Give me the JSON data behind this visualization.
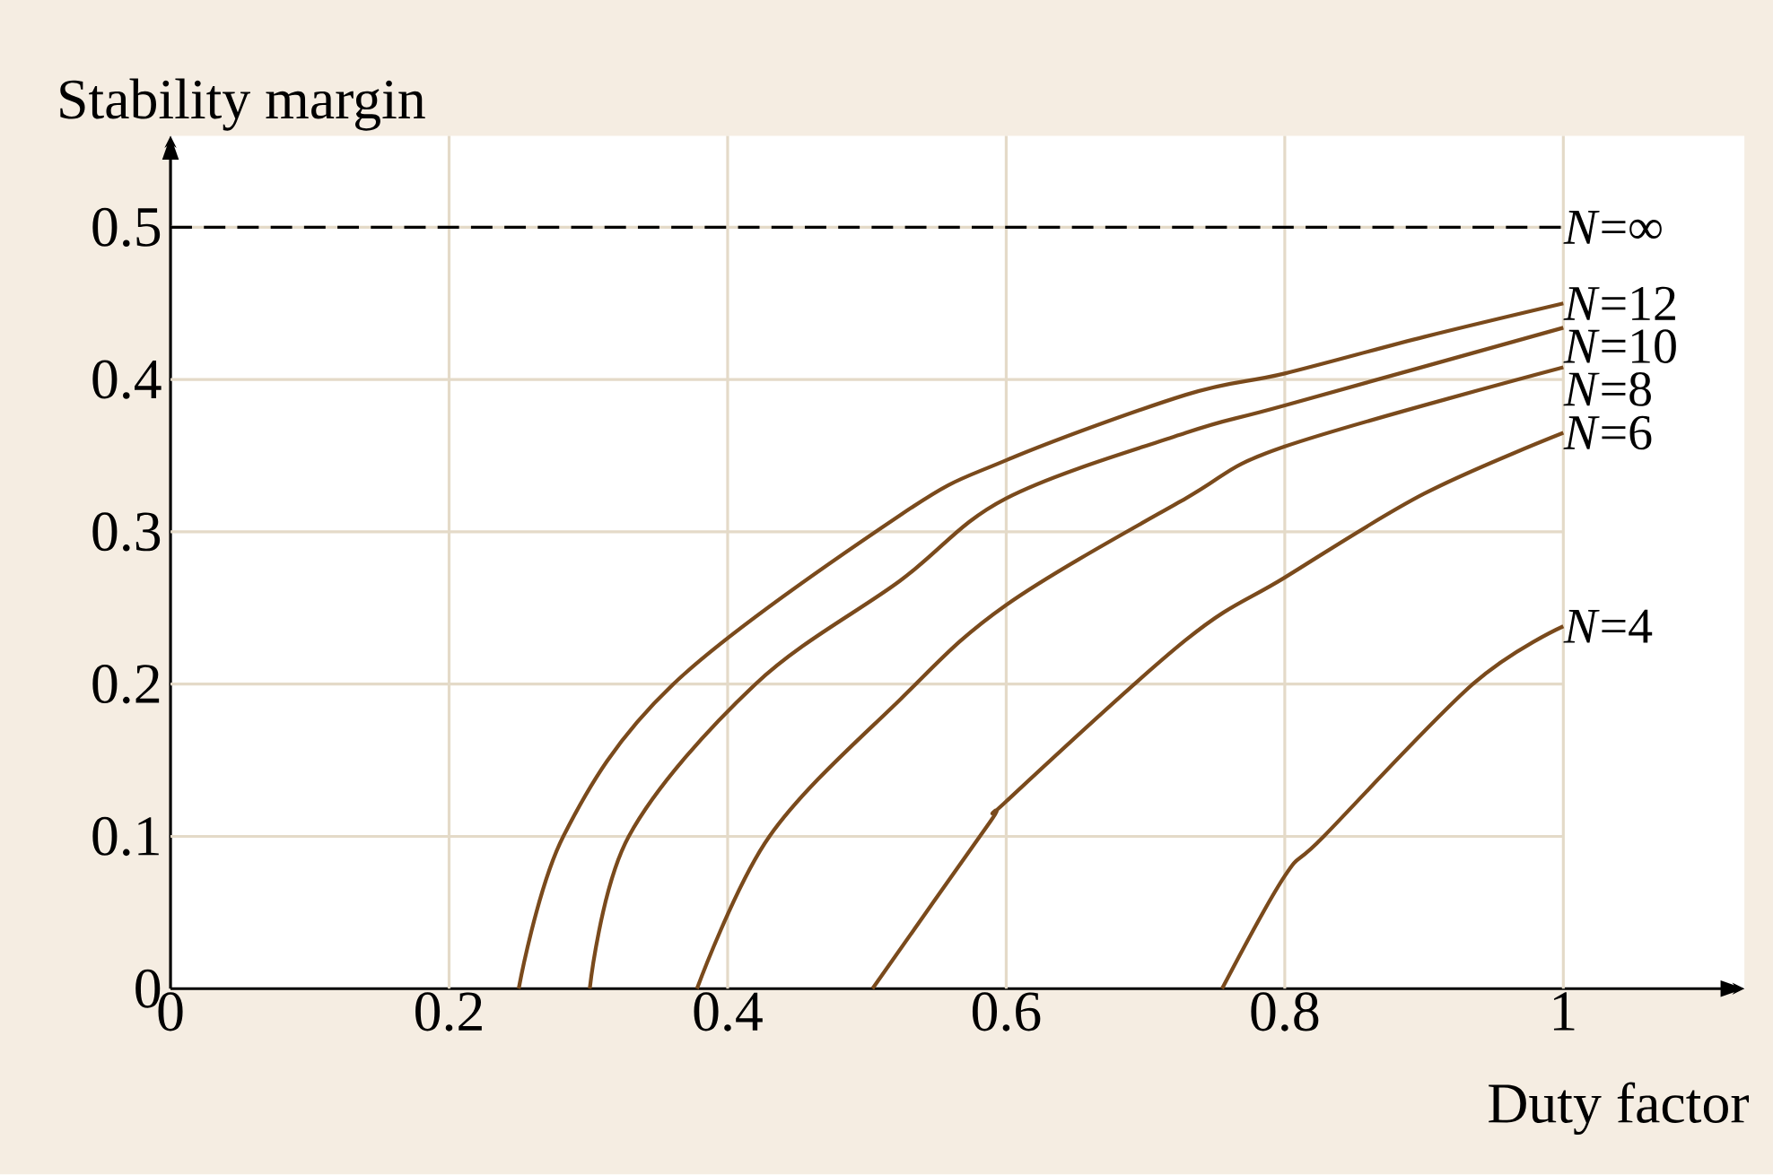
{
  "chart_data": {
    "type": "line",
    "xlabel": "Duty factor",
    "ylabel": "Stability margin",
    "xlim": [
      0,
      1.13
    ],
    "ylim": [
      0,
      0.56
    ],
    "xticks": [
      0,
      0.2,
      0.4,
      0.6,
      0.8,
      1
    ],
    "yticks": [
      0,
      0.1,
      0.2,
      0.3,
      0.4,
      0.5
    ],
    "grid": true,
    "line_style": "solid",
    "ref_lines": [
      {
        "axis": "y",
        "value": 0.5,
        "label": "*N*=∞",
        "color": "#000000",
        "line_style": "dashed"
      }
    ],
    "series": [
      {
        "name": "*N*=12",
        "color": "#7a4a1c",
        "x": [
          0.25,
          0.282,
          0.361,
          0.524,
          0.6,
          0.729,
          0.8,
          0.9,
          1
        ],
        "values": [
          0,
          0.1,
          0.2,
          0.311,
          0.347,
          0.39,
          0.404,
          0.428,
          0.45
        ]
      },
      {
        "name": "*N*=10",
        "color": "#7a4a1c",
        "x": [
          0.301,
          0.329,
          0.42,
          0.524,
          0.6,
          0.729,
          0.8,
          1
        ],
        "values": [
          0,
          0.1,
          0.2,
          0.268,
          0.322,
          0.365,
          0.383,
          0.434
        ]
      },
      {
        "name": "*N*=8",
        "color": "#7a4a1c",
        "x": [
          0.378,
          0.43,
          0.524,
          0.6,
          0.729,
          0.8,
          1
        ],
        "values": [
          0,
          0.1,
          0.19,
          0.252,
          0.322,
          0.356,
          0.408
        ]
      },
      {
        "name": "*N*=6",
        "color": "#7a4a1c",
        "x": [
          0.504,
          0.588,
          0.6,
          0.729,
          0.8,
          0.9,
          1
        ],
        "values": [
          0,
          0.109,
          0.123,
          0.229,
          0.27,
          0.325,
          0.365
        ]
      },
      {
        "name": "*N*=4",
        "color": "#7a4a1c",
        "x": [
          0.755,
          0.8,
          0.828,
          0.935,
          1
        ],
        "values": [
          0,
          0.074,
          0.1,
          0.2,
          0.238
        ]
      }
    ]
  }
}
